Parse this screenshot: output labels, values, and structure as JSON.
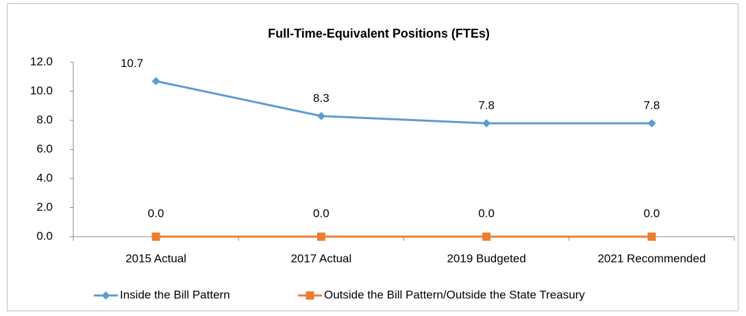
{
  "chart_data": {
    "type": "line",
    "title": "Full-Time-Equivalent Positions (FTEs)",
    "categories": [
      "2015 Actual",
      "2017 Actual",
      "2019 Budgeted",
      "2021 Recommended"
    ],
    "series": [
      {
        "name": "Inside the Bill Pattern",
        "color": "#5b9bd5",
        "marker": "diamond",
        "values": [
          10.7,
          8.3,
          7.8,
          7.8
        ],
        "value_labels": [
          "10.7",
          "8.3",
          "7.8",
          "7.8"
        ]
      },
      {
        "name": "Outside the Bill Pattern/Outside the State Treasury",
        "color": "#ed7d31",
        "marker": "square",
        "values": [
          0,
          0,
          0,
          0
        ],
        "value_labels": [
          "0.0",
          "0.0",
          "0.0",
          "0.0"
        ]
      }
    ],
    "ylim": [
      0,
      12
    ],
    "yticks": [
      {
        "value": 0,
        "label": "0.0"
      },
      {
        "value": 2,
        "label": "2.0"
      },
      {
        "value": 4,
        "label": "4.0"
      },
      {
        "value": 6,
        "label": "6.0"
      },
      {
        "value": 8,
        "label": "8.0"
      },
      {
        "value": 10,
        "label": "10.0"
      },
      {
        "value": 12,
        "label": "12.0"
      }
    ],
    "grid": false,
    "legend": "bottom"
  }
}
